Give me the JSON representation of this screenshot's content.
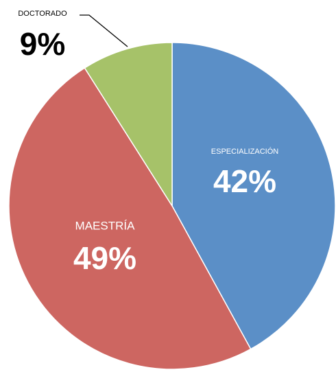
{
  "chart_data": {
    "type": "pie",
    "categories": [
      "ESPECIALIZACIÓN",
      "MAESTRÍA",
      "DOCTORADO"
    ],
    "values": [
      42,
      49,
      9
    ],
    "value_labels": [
      "42%",
      "49%",
      "9%"
    ],
    "colors": [
      "#5b8fc7",
      "#cd6661",
      "#a6c269"
    ]
  }
}
